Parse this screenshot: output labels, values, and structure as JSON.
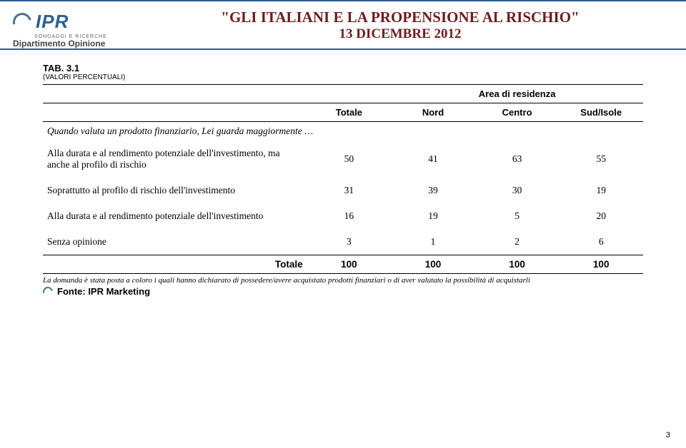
{
  "header": {
    "logo_text": "IPR",
    "logo_sub": "SONDAGGI E RICERCHE",
    "department": "Dipartimento Opinione",
    "title": "\"GLI ITALIANI E LA PROPENSIONE AL RISCHIO\"",
    "date": "13 DICEMBRE 2012",
    "title_color": "#6e1c1c",
    "rule_color": "#2a5f99"
  },
  "table": {
    "tab_label": "TAB. 3.1",
    "valori": "(VALORI PERCENTUALI)",
    "area_header": "Area di residenza",
    "columns": [
      "Totale",
      "Nord",
      "Centro",
      "Sud/Isole"
    ],
    "question": "Quando valuta un prodotto finanziario, Lei guarda maggiormente …",
    "rows": [
      {
        "label": "Alla durata e al rendimento potenziale dell'investimento, ma anche al profilo di rischio",
        "values": [
          "50",
          "41",
          "63",
          "55"
        ]
      },
      {
        "label": "Soprattutto al profilo di rischio dell'investimento",
        "values": [
          "31",
          "39",
          "30",
          "19"
        ]
      },
      {
        "label": "Alla durata e al rendimento potenziale dell'investimento",
        "values": [
          "16",
          "19",
          "5",
          "20"
        ]
      },
      {
        "label": "Senza opinione",
        "values": [
          "3",
          "1",
          "2",
          "6"
        ]
      }
    ],
    "totale_label": "Totale",
    "totale_values": [
      "100",
      "100",
      "100",
      "100"
    ],
    "footnote": "La domanda è stata posta a coloro i quali hanno dichiarato di possedere/avere acquistato prodotti finanziari o di aver valutato la possibilità di acquistarli",
    "source": "Fonte: IPR Marketing"
  },
  "page_number": "3",
  "colors": {
    "text": "#000000",
    "logo": "#2d5f94"
  }
}
